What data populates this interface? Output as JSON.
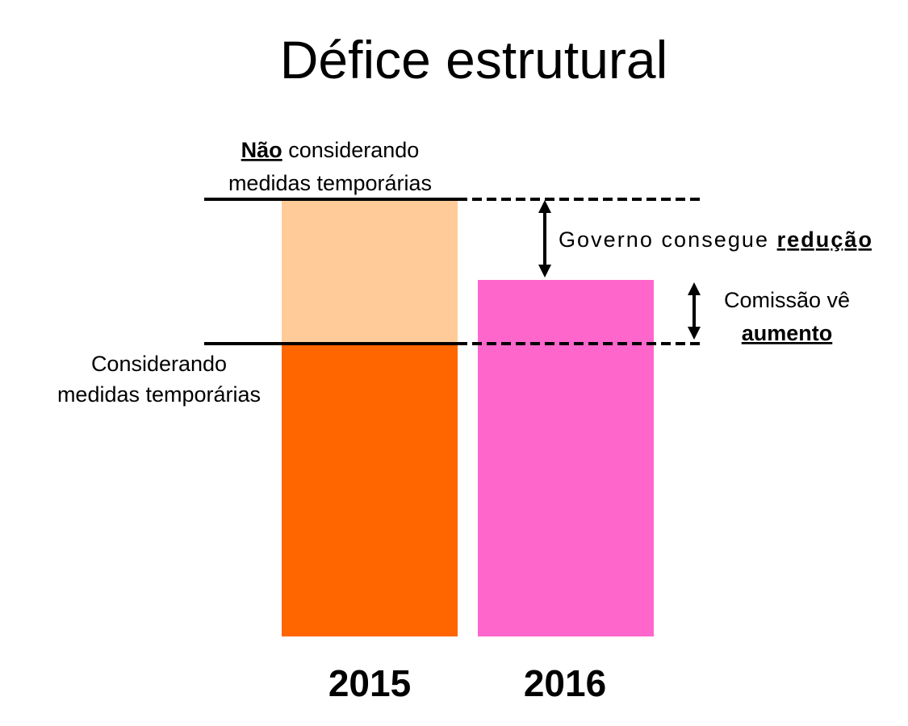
{
  "title": "Défice estrutural",
  "top_label": {
    "emphasis": "Não",
    "rest": " considerando",
    "line2": "medidas temporárias"
  },
  "bottom_label": {
    "line1": "Considerando",
    "line2": "medidas temporárias"
  },
  "reduction_label": {
    "text": "Governo consegue ",
    "emphasis": "redução"
  },
  "increase_label": {
    "line1": "Comissão vê",
    "emphasis": "aumento"
  },
  "years": [
    "2015",
    "2016"
  ],
  "colors": {
    "bar_2015_with_measures": "#FF6600",
    "bar_2015_without_measures": "#FFCC99",
    "bar_2016": "#FF66CC",
    "lines": "#000000"
  }
}
